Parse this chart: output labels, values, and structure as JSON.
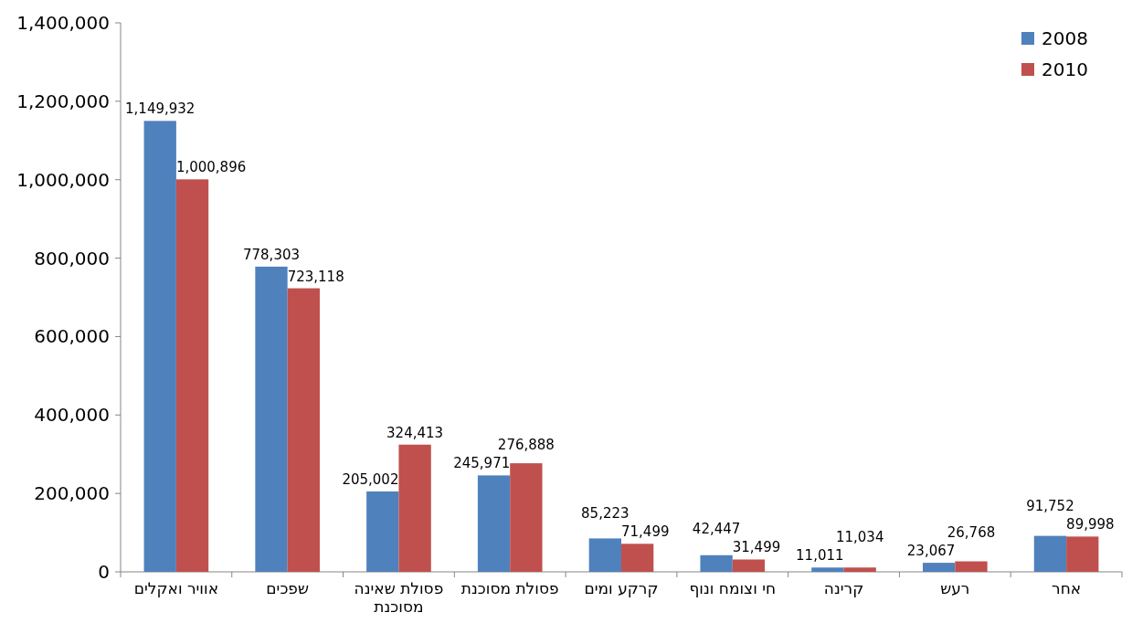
{
  "chart_data": {
    "type": "bar",
    "categories": [
      "אוויר ואקלים",
      "שפכים",
      "פסולת שאינה מסוכנת",
      "פסולת מסוכנת",
      "קרקע ומים",
      "חי וצומח ונוף",
      "קרינה",
      "רעש",
      "אחר"
    ],
    "series": [
      {
        "name": "2008",
        "color": "#4f81bd",
        "values": [
          1149932,
          778303,
          205002,
          245971,
          85223,
          42447,
          11011,
          23067,
          91752
        ],
        "value_labels": [
          "1,149,932",
          "778,303",
          "205,002",
          "245,971",
          "85,223",
          "42,447",
          "11,011",
          "23,067",
          "91,752"
        ]
      },
      {
        "name": "2010",
        "color": "#c0504d",
        "values": [
          1000896,
          723118,
          324413,
          276888,
          71499,
          31499,
          11034,
          26768,
          89998
        ],
        "value_labels": [
          "1,000,896",
          "723,118",
          "324,413",
          "276,888",
          "71,499",
          "31,499",
          "11,034",
          "26,768",
          "89,998"
        ]
      }
    ],
    "data_labels": true,
    "ylim": [
      0,
      1400000
    ],
    "yticks": [
      0,
      {
        "value": 200000,
        "label": "200,000"
      },
      {
        "value": 400000,
        "label": "400,000"
      },
      {
        "value": 600000,
        "label": "600,000"
      },
      {
        "value": 800000,
        "label": "800,000"
      },
      {
        "value": 1000000,
        "label": "1,000,000"
      },
      {
        "value": 1200000,
        "label": "1,200,000"
      },
      {
        "value": 1400000,
        "label": "1,400,000"
      }
    ],
    "legend": "top right"
  }
}
